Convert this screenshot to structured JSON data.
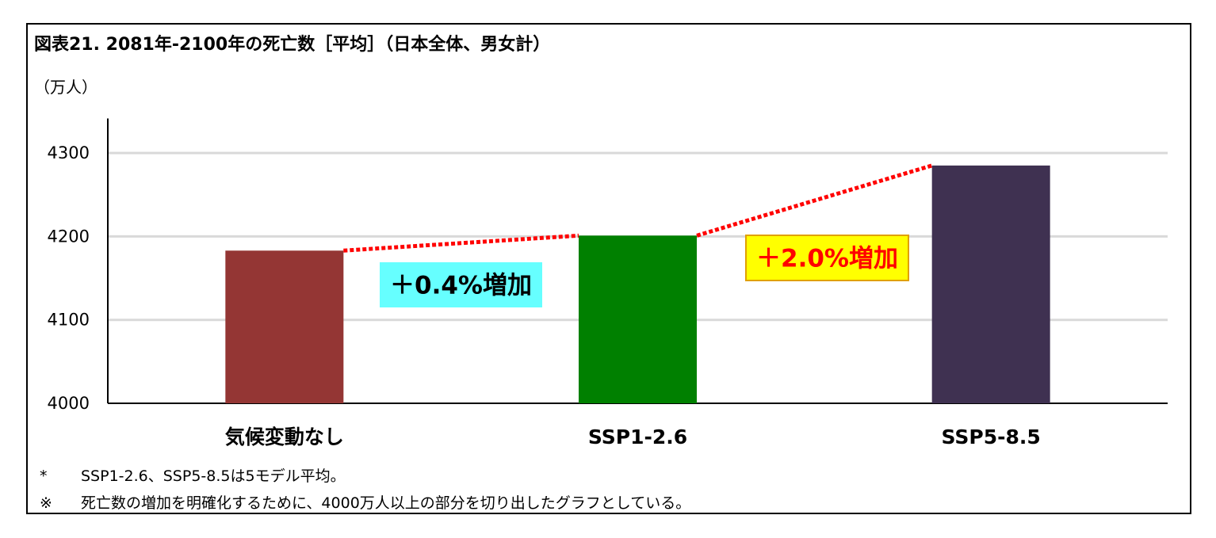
{
  "title": "図表21. 2081年-2100年の死亡数［平均］（日本全体、男女計）",
  "unit_label": "（万人）",
  "notes": [
    {
      "mark": "*",
      "text": "SSP1-2.6、SSP5-8.5は5モデル平均。"
    },
    {
      "mark": "※",
      "text": "死亡数の増加を明確化するために、4000万人以上の部分を切り出したグラフとしている。"
    }
  ],
  "chart_data": {
    "type": "bar",
    "title": "図表21. 2081年-2100年の死亡数［平均］（日本全体、男女計）",
    "ylabel": "（万人）",
    "xlabel": "",
    "categories": [
      "気候変動なし",
      "SSP1-2.6",
      "SSP5-8.5"
    ],
    "values": [
      4183,
      4201,
      4285
    ],
    "colors": [
      "#943634",
      "#008000",
      "#3f3151"
    ],
    "ylim": [
      4000,
      4330
    ],
    "yticks": [
      "4000",
      "4100",
      "4200",
      "4300"
    ],
    "grid": true,
    "legend": "none",
    "annotations": [
      {
        "text": "＋0.4%増加",
        "background": "#66ffff",
        "color": "#000000",
        "between": [
          0,
          1
        ]
      },
      {
        "text": "＋2.0%増加",
        "background": "#ffff00",
        "color": "#ff0000",
        "border": "#e0a000",
        "between": [
          1,
          2
        ]
      }
    ],
    "connector_color": "#ff0000"
  }
}
